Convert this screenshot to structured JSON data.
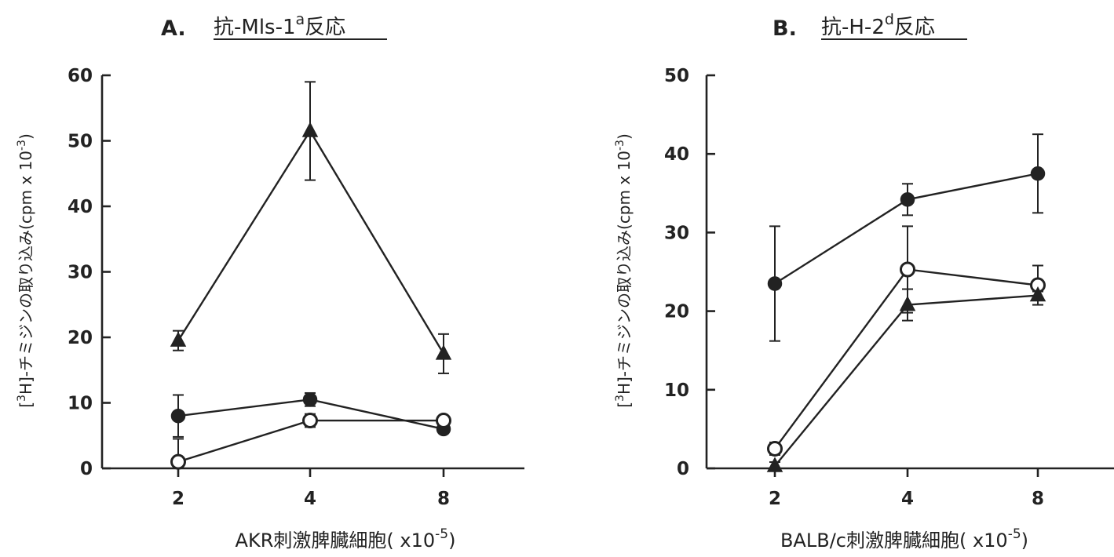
{
  "panels": {
    "A": {
      "letter": "A.",
      "title_main": "抗-Mls-1",
      "title_sup": "a",
      "title_end": "反応"
    },
    "B": {
      "letter": "B.",
      "title_main": "抗-H-2",
      "title_sup": "d",
      "title_end": "反応"
    }
  },
  "chart_data": [
    {
      "type": "line",
      "panel": "A",
      "title": "A. 抗-Mls-1a反応",
      "xlabel": "AKR刺激脾臓細胞( x10-5)",
      "xlabel_main": "AKR刺激脾臓細胞( x10",
      "xlabel_exp": "-5",
      "xlabel_close": ")",
      "ylabel": "[3H]-チミジンの取り込み(cpm x 10-3)",
      "categories": [
        "2",
        "4",
        "8"
      ],
      "ylim": [
        0,
        60
      ],
      "yticks": [
        0,
        10,
        20,
        30,
        40,
        50,
        60
      ],
      "grid": false,
      "series": [
        {
          "marker": "triangle-filled",
          "values": [
            19.5,
            51.5,
            17.5
          ],
          "err": [
            1.5,
            7.5,
            3.0
          ]
        },
        {
          "marker": "circle-filled",
          "values": [
            8.0,
            10.5,
            6.0
          ],
          "err": [
            3.2,
            1.0,
            0.5
          ]
        },
        {
          "marker": "circle-open",
          "values": [
            1.0,
            7.3,
            7.3
          ],
          "err": [
            3.5,
            1.0,
            0.5
          ]
        }
      ]
    },
    {
      "type": "line",
      "panel": "B",
      "title": "B. 抗-H-2d反応",
      "xlabel": "BALB/c刺激脾臓細胞( x10-5)",
      "xlabel_main": "BALB/c刺激脾臓細胞( x10",
      "xlabel_exp": "-5",
      "xlabel_close": ")",
      "ylabel": "[3H]-チミジンの取り込み(cpm x 10-3)",
      "categories": [
        "2",
        "4",
        "8"
      ],
      "ylim": [
        0,
        50
      ],
      "yticks": [
        0,
        10,
        20,
        30,
        40,
        50
      ],
      "grid": false,
      "series": [
        {
          "marker": "circle-filled",
          "values": [
            23.5,
            34.2,
            37.5
          ],
          "err": [
            7.3,
            2.0,
            5.0
          ]
        },
        {
          "marker": "circle-open",
          "values": [
            2.5,
            25.3,
            23.3
          ],
          "err": [
            0.8,
            5.5,
            2.5
          ]
        },
        {
          "marker": "triangle-filled",
          "values": [
            0.3,
            20.8,
            22.0
          ],
          "err": [
            0.5,
            2.0,
            0.5
          ]
        }
      ]
    }
  ]
}
